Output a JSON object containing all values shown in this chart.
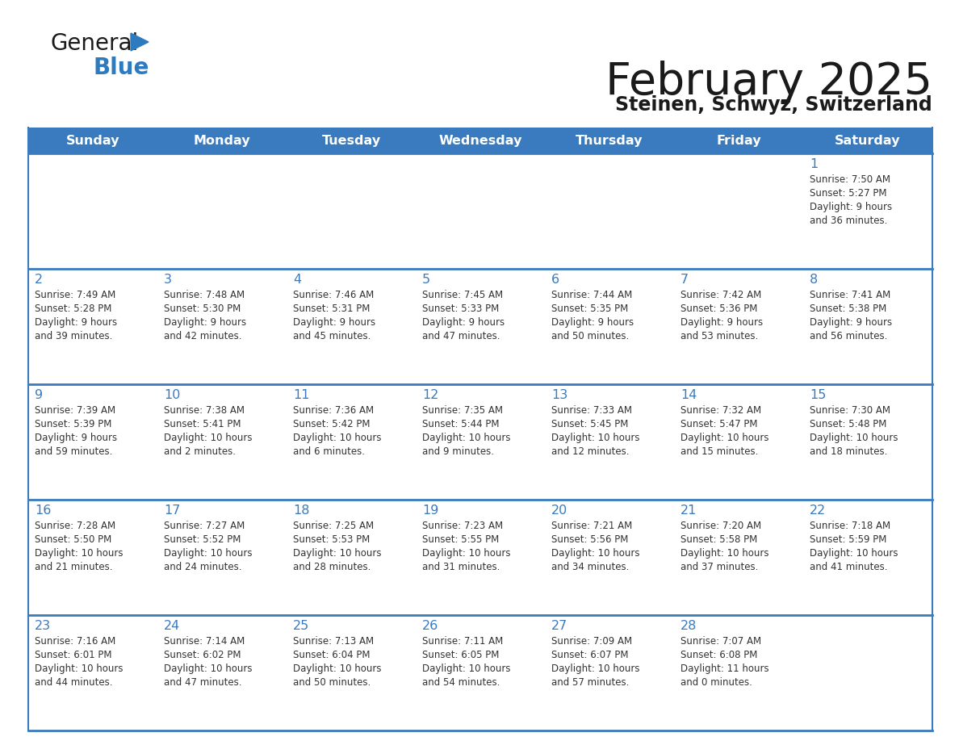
{
  "title": "February 2025",
  "subtitle": "Steinen, Schwyz, Switzerland",
  "header_color": "#3a7bbf",
  "header_text_color": "#ffffff",
  "day_names": [
    "Sunday",
    "Monday",
    "Tuesday",
    "Wednesday",
    "Thursday",
    "Friday",
    "Saturday"
  ],
  "bg_color": "#ffffff",
  "row_separator_color": "#3a7bbf",
  "date_color": "#3a7bbf",
  "text_color": "#333333",
  "calendar": [
    [
      null,
      null,
      null,
      null,
      null,
      null,
      {
        "day": 1,
        "sunrise": "7:50 AM",
        "sunset": "5:27 PM",
        "daylight": "9 hours and 36 minutes."
      }
    ],
    [
      {
        "day": 2,
        "sunrise": "7:49 AM",
        "sunset": "5:28 PM",
        "daylight": "9 hours and 39 minutes."
      },
      {
        "day": 3,
        "sunrise": "7:48 AM",
        "sunset": "5:30 PM",
        "daylight": "9 hours and 42 minutes."
      },
      {
        "day": 4,
        "sunrise": "7:46 AM",
        "sunset": "5:31 PM",
        "daylight": "9 hours and 45 minutes."
      },
      {
        "day": 5,
        "sunrise": "7:45 AM",
        "sunset": "5:33 PM",
        "daylight": "9 hours and 47 minutes."
      },
      {
        "day": 6,
        "sunrise": "7:44 AM",
        "sunset": "5:35 PM",
        "daylight": "9 hours and 50 minutes."
      },
      {
        "day": 7,
        "sunrise": "7:42 AM",
        "sunset": "5:36 PM",
        "daylight": "9 hours and 53 minutes."
      },
      {
        "day": 8,
        "sunrise": "7:41 AM",
        "sunset": "5:38 PM",
        "daylight": "9 hours and 56 minutes."
      }
    ],
    [
      {
        "day": 9,
        "sunrise": "7:39 AM",
        "sunset": "5:39 PM",
        "daylight": "9 hours and 59 minutes."
      },
      {
        "day": 10,
        "sunrise": "7:38 AM",
        "sunset": "5:41 PM",
        "daylight": "10 hours and 2 minutes."
      },
      {
        "day": 11,
        "sunrise": "7:36 AM",
        "sunset": "5:42 PM",
        "daylight": "10 hours and 6 minutes."
      },
      {
        "day": 12,
        "sunrise": "7:35 AM",
        "sunset": "5:44 PM",
        "daylight": "10 hours and 9 minutes."
      },
      {
        "day": 13,
        "sunrise": "7:33 AM",
        "sunset": "5:45 PM",
        "daylight": "10 hours and 12 minutes."
      },
      {
        "day": 14,
        "sunrise": "7:32 AM",
        "sunset": "5:47 PM",
        "daylight": "10 hours and 15 minutes."
      },
      {
        "day": 15,
        "sunrise": "7:30 AM",
        "sunset": "5:48 PM",
        "daylight": "10 hours and 18 minutes."
      }
    ],
    [
      {
        "day": 16,
        "sunrise": "7:28 AM",
        "sunset": "5:50 PM",
        "daylight": "10 hours and 21 minutes."
      },
      {
        "day": 17,
        "sunrise": "7:27 AM",
        "sunset": "5:52 PM",
        "daylight": "10 hours and 24 minutes."
      },
      {
        "day": 18,
        "sunrise": "7:25 AM",
        "sunset": "5:53 PM",
        "daylight": "10 hours and 28 minutes."
      },
      {
        "day": 19,
        "sunrise": "7:23 AM",
        "sunset": "5:55 PM",
        "daylight": "10 hours and 31 minutes."
      },
      {
        "day": 20,
        "sunrise": "7:21 AM",
        "sunset": "5:56 PM",
        "daylight": "10 hours and 34 minutes."
      },
      {
        "day": 21,
        "sunrise": "7:20 AM",
        "sunset": "5:58 PM",
        "daylight": "10 hours and 37 minutes."
      },
      {
        "day": 22,
        "sunrise": "7:18 AM",
        "sunset": "5:59 PM",
        "daylight": "10 hours and 41 minutes."
      }
    ],
    [
      {
        "day": 23,
        "sunrise": "7:16 AM",
        "sunset": "6:01 PM",
        "daylight": "10 hours and 44 minutes."
      },
      {
        "day": 24,
        "sunrise": "7:14 AM",
        "sunset": "6:02 PM",
        "daylight": "10 hours and 47 minutes."
      },
      {
        "day": 25,
        "sunrise": "7:13 AM",
        "sunset": "6:04 PM",
        "daylight": "10 hours and 50 minutes."
      },
      {
        "day": 26,
        "sunrise": "7:11 AM",
        "sunset": "6:05 PM",
        "daylight": "10 hours and 54 minutes."
      },
      {
        "day": 27,
        "sunrise": "7:09 AM",
        "sunset": "6:07 PM",
        "daylight": "10 hours and 57 minutes."
      },
      {
        "day": 28,
        "sunrise": "7:07 AM",
        "sunset": "6:08 PM",
        "daylight": "11 hours and 0 minutes."
      },
      null
    ]
  ],
  "logo_color_general": "#1a1a1a",
  "logo_color_blue": "#2e7abf",
  "logo_triangle_color": "#2e7abf"
}
